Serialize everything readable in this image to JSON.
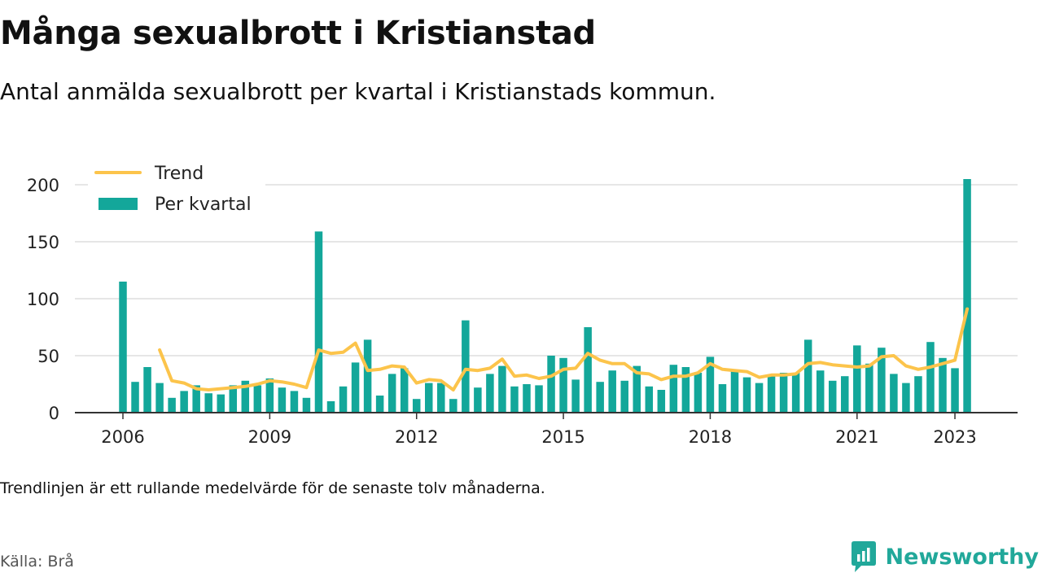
{
  "title": "Många sexualbrott i Kristianstad",
  "subtitle": "Antal anmälda sexualbrott per kvartal i Kristianstads kommun.",
  "note": "Trendlinjen är ett rullande medelvärde för de senaste tolv månaderna.",
  "source": "Källa: Brå",
  "brand": {
    "name": "Newsworthy",
    "icon": "newsworthy-logo-icon"
  },
  "colors": {
    "bars": "#13a79a",
    "trend": "#fcc44b",
    "grid": "#dddddd",
    "axis": "#333333"
  },
  "chart_data": {
    "type": "bar",
    "title": "",
    "xlabel": "",
    "ylabel": "",
    "ylim": [
      0,
      215
    ],
    "y_ticks": [
      0,
      50,
      100,
      150,
      200
    ],
    "x_tick_labels": [
      "2006",
      "2009",
      "2012",
      "2015",
      "2018",
      "2021",
      "2023"
    ],
    "grid": true,
    "legend_position": "top-left",
    "categories": [
      "2006 Q1",
      "2006 Q2",
      "2006 Q3",
      "2006 Q4",
      "2007 Q1",
      "2007 Q2",
      "2007 Q3",
      "2007 Q4",
      "2008 Q1",
      "2008 Q2",
      "2008 Q3",
      "2008 Q4",
      "2009 Q1",
      "2009 Q2",
      "2009 Q3",
      "2009 Q4",
      "2010 Q1",
      "2010 Q2",
      "2010 Q3",
      "2010 Q4",
      "2011 Q1",
      "2011 Q2",
      "2011 Q3",
      "2011 Q4",
      "2012 Q1",
      "2012 Q2",
      "2012 Q3",
      "2012 Q4",
      "2013 Q1",
      "2013 Q2",
      "2013 Q3",
      "2013 Q4",
      "2014 Q1",
      "2014 Q2",
      "2014 Q3",
      "2014 Q4",
      "2015 Q1",
      "2015 Q2",
      "2015 Q3",
      "2015 Q4",
      "2016 Q1",
      "2016 Q2",
      "2016 Q3",
      "2016 Q4",
      "2017 Q1",
      "2017 Q2",
      "2017 Q3",
      "2017 Q4",
      "2018 Q1",
      "2018 Q2",
      "2018 Q3",
      "2018 Q4",
      "2019 Q1",
      "2019 Q2",
      "2019 Q3",
      "2019 Q4",
      "2020 Q1",
      "2020 Q2",
      "2020 Q3",
      "2020 Q4",
      "2021 Q1",
      "2021 Q2",
      "2021 Q3",
      "2021 Q4",
      "2022 Q1",
      "2022 Q2",
      "2022 Q3",
      "2022 Q4",
      "2023 Q1",
      "2023 Q2"
    ],
    "series": [
      {
        "name": "Per kvartal",
        "kind": "bar",
        "values": [
          115,
          27,
          40,
          26,
          13,
          19,
          24,
          17,
          16,
          24,
          28,
          24,
          30,
          22,
          19,
          13,
          159,
          10,
          23,
          44,
          64,
          15,
          34,
          39,
          12,
          26,
          26,
          12,
          81,
          22,
          34,
          41,
          23,
          25,
          24,
          50,
          48,
          29,
          75,
          27,
          37,
          28,
          41,
          23,
          20,
          42,
          40,
          35,
          49,
          25,
          37,
          31,
          26,
          32,
          35,
          35,
          64,
          37,
          28,
          32,
          59,
          43,
          57,
          34,
          26,
          32,
          62,
          48,
          39,
          205
        ]
      },
      {
        "name": "Trend",
        "kind": "line",
        "values": [
          null,
          null,
          null,
          55,
          28,
          26,
          21,
          20,
          21,
          22,
          23,
          25,
          28,
          27,
          25,
          22,
          55,
          52,
          53,
          61,
          37,
          38,
          41,
          40,
          26,
          29,
          28,
          20,
          38,
          37,
          39,
          47,
          32,
          33,
          30,
          32,
          38,
          39,
          52,
          46,
          43,
          43,
          35,
          34,
          29,
          32,
          32,
          35,
          43,
          38,
          37,
          36,
          31,
          33,
          33,
          34,
          43,
          44,
          42,
          41,
          40,
          41,
          49,
          50,
          41,
          38,
          40,
          43,
          46,
          91
        ]
      }
    ]
  }
}
